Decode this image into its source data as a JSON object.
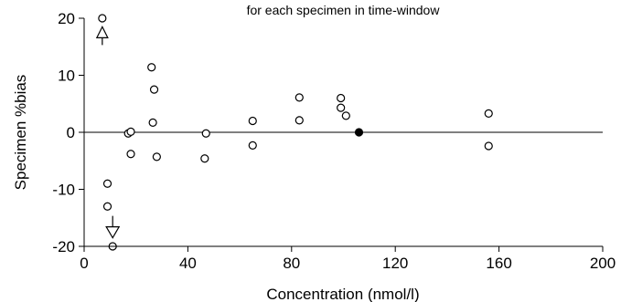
{
  "chart_data": {
    "type": "scatter",
    "title": "for each specimen in time-window",
    "xlabel": "Concentration (nmol/l)",
    "ylabel": "Specimen %bias",
    "xlim": [
      0,
      200
    ],
    "ylim": [
      -20,
      20
    ],
    "xticks": [
      0,
      40,
      80,
      120,
      160,
      200
    ],
    "yticks": [
      -20,
      -10,
      0,
      10,
      20
    ],
    "x_tick_labels": [
      "0",
      "40",
      "80",
      "120",
      "160",
      "200"
    ],
    "y_tick_labels": [
      "-20",
      "-10",
      "0",
      "10",
      "20"
    ],
    "reference_line_y": 0,
    "grid": false,
    "series": [
      {
        "marker": "open-circle",
        "points": [
          {
            "x": 7,
            "y": 20
          },
          {
            "x": 9,
            "y": -9
          },
          {
            "x": 9,
            "y": -13
          },
          {
            "x": 11,
            "y": -20
          },
          {
            "x": 17,
            "y": -0.2
          },
          {
            "x": 18,
            "y": 0.1
          },
          {
            "x": 18,
            "y": -3.8
          },
          {
            "x": 26,
            "y": 11.4
          },
          {
            "x": 27,
            "y": 7.5
          },
          {
            "x": 26.5,
            "y": 1.7
          },
          {
            "x": 28,
            "y": -4.3
          },
          {
            "x": 47,
            "y": -0.2
          },
          {
            "x": 46.5,
            "y": -4.6
          },
          {
            "x": 65,
            "y": 2
          },
          {
            "x": 65,
            "y": -2.3
          },
          {
            "x": 83,
            "y": 6.1
          },
          {
            "x": 83,
            "y": 2.1
          },
          {
            "x": 99,
            "y": 6
          },
          {
            "x": 99,
            "y": 4.3
          },
          {
            "x": 101,
            "y": 2.9
          },
          {
            "x": 156,
            "y": 3.3
          },
          {
            "x": 156,
            "y": -2.4
          }
        ]
      },
      {
        "marker": "filled-circle",
        "points": [
          {
            "x": 106,
            "y": 0
          }
        ]
      }
    ],
    "annotations": [
      {
        "type": "arrow-up",
        "x": 7,
        "y": 18.5
      },
      {
        "type": "arrow-down",
        "x": 11,
        "y": -18.5
      }
    ]
  }
}
